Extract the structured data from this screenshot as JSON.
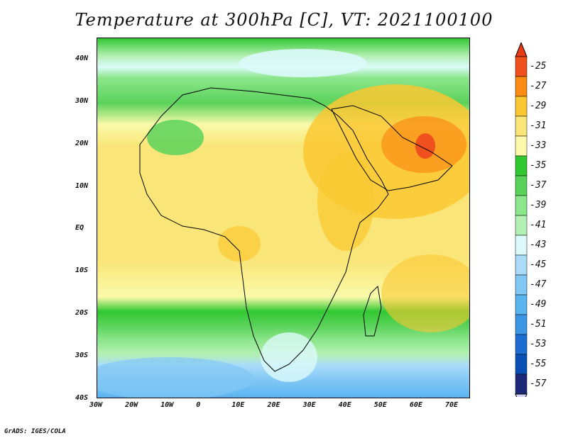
{
  "title": "Temperature at 300hPa [C], VT: 2021100100",
  "footer": "GrADS: IGES/COLA",
  "map": {
    "lon_range": [
      -30,
      75
    ],
    "lat_range": [
      -40,
      45
    ],
    "x_ticks": [
      {
        "value": -30,
        "label": "30W"
      },
      {
        "value": -20,
        "label": "20W"
      },
      {
        "value": -10,
        "label": "10W"
      },
      {
        "value": 0,
        "label": "0"
      },
      {
        "value": 10,
        "label": "10E"
      },
      {
        "value": 20,
        "label": "20E"
      },
      {
        "value": 30,
        "label": "30E"
      },
      {
        "value": 40,
        "label": "40E"
      },
      {
        "value": 50,
        "label": "50E"
      },
      {
        "value": 60,
        "label": "60E"
      },
      {
        "value": 70,
        "label": "70E"
      }
    ],
    "y_ticks": [
      {
        "value": 40,
        "label": "40N"
      },
      {
        "value": 30,
        "label": "30N"
      },
      {
        "value": 20,
        "label": "20N"
      },
      {
        "value": 10,
        "label": "10N"
      },
      {
        "value": 0,
        "label": "EQ"
      },
      {
        "value": -10,
        "label": "10S"
      },
      {
        "value": -20,
        "label": "20S"
      },
      {
        "value": -30,
        "label": "30S"
      },
      {
        "value": -40,
        "label": "40S"
      }
    ]
  },
  "colorbar": {
    "labels": [
      "-25",
      "-27",
      "-29",
      "-31",
      "-33",
      "-35",
      "-37",
      "-39",
      "-41",
      "-43",
      "-45",
      "-47",
      "-49",
      "-51",
      "-53",
      "-55",
      "-57"
    ],
    "colors": [
      "#f0501e",
      "#fa8c14",
      "#fac832",
      "#fae678",
      "#fafaaa",
      "#32c832",
      "#5ad25a",
      "#8ce68c",
      "#b4f0b4",
      "#dcfafa",
      "#aadcfa",
      "#82c8f5",
      "#5ab4f0",
      "#3c96e6",
      "#1e6ed2",
      "#0a50b4",
      "#1e2878"
    ],
    "top_arrow_color": "#e63c14",
    "bottom_arrow_color": "#d2d2f5"
  },
  "temperature_bands": [
    {
      "lat": 45,
      "value": -37
    },
    {
      "lat": 40,
      "value": -41
    },
    {
      "lat": 36,
      "value": -38
    },
    {
      "lat": 30,
      "value": -36
    },
    {
      "lat": 24,
      "value": -32
    },
    {
      "lat": 15,
      "value": -31
    },
    {
      "lat": 5,
      "value": -32
    },
    {
      "lat": -5,
      "value": -31
    },
    {
      "lat": -15,
      "value": -32
    },
    {
      "lat": -20,
      "value": -34
    },
    {
      "lat": -25,
      "value": -37
    },
    {
      "lat": -30,
      "value": -41
    },
    {
      "lat": -35,
      "value": -45
    },
    {
      "lat": -40,
      "value": -48
    }
  ]
}
